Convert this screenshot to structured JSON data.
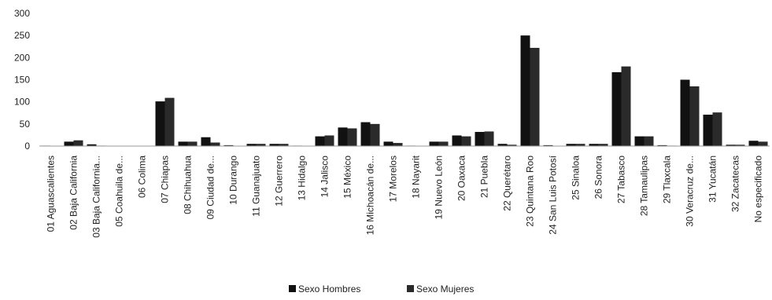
{
  "chart_data": {
    "type": "bar",
    "title": "",
    "xlabel": "",
    "ylabel": "",
    "ylim": [
      0,
      300
    ],
    "yticks": [
      0,
      50,
      100,
      150,
      200,
      250,
      300
    ],
    "grid": false,
    "legend_position": "bottom",
    "categories": [
      "01 Aguascalientes",
      "02 Baja California",
      "03 Baja California...",
      "05 Coahuila de...",
      "06 Colima",
      "07 Chiapas",
      "08 Chihuahua",
      "09 Ciudad de...",
      "10 Durango",
      "11 Guanajuato",
      "12 Guerrero",
      "13 Hidalgo",
      "14 Jalisco",
      "15 México",
      "16 Michoacán de...",
      "17 Morelos",
      "18 Nayarit",
      "19 Nuevo León",
      "20 Oaxaca",
      "21 Puebla",
      "22 Querétaro",
      "23 Quintana Roo",
      "24 San Luis Potosí",
      "25 Sinaloa",
      "26 Sonora",
      "27 Tabasco",
      "28 Tamaulipas",
      "29 Tlaxcala",
      "30 Veracruz de...",
      "31 Yucatán",
      "32 Zacatecas",
      "No especificado"
    ],
    "series": [
      {
        "name": "Sexo Hombres",
        "color": "#111111",
        "values": [
          1,
          10,
          4,
          0,
          0,
          101,
          10,
          20,
          2,
          5,
          5,
          1,
          22,
          42,
          54,
          10,
          1,
          10,
          24,
          32,
          5,
          250,
          2,
          5,
          5,
          167,
          22,
          2,
          150,
          71,
          3,
          12
        ]
      },
      {
        "name": "Sexo Mujeres",
        "color": "#2a2a2a",
        "values": [
          0,
          13,
          1,
          0,
          0,
          109,
          10,
          8,
          0,
          5,
          5,
          0,
          24,
          40,
          50,
          7,
          0,
          10,
          22,
          33,
          3,
          222,
          0,
          5,
          5,
          180,
          22,
          1,
          135,
          76,
          3,
          10
        ]
      }
    ]
  }
}
